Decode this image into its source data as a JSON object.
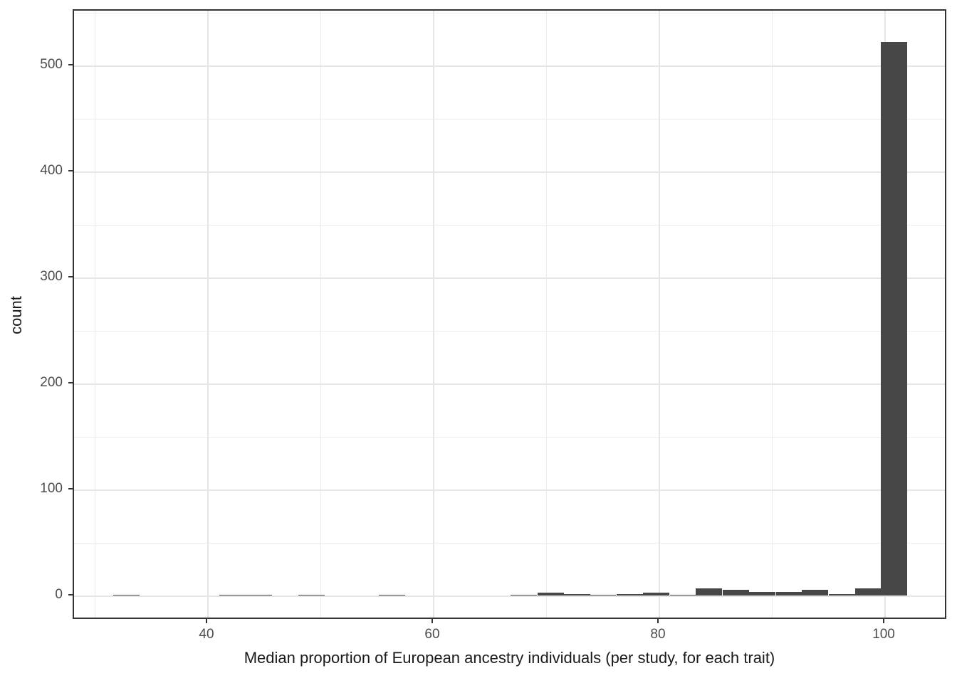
{
  "chart_data": {
    "type": "histogram",
    "title": "",
    "xlabel": "Median proportion of European ancestry individuals (per study, for each trait)",
    "ylabel": "count",
    "x_ticks": [
      40,
      60,
      80,
      100
    ],
    "x_minor_gridlines": [
      30,
      50,
      70,
      90
    ],
    "y_ticks": [
      0,
      100,
      200,
      300,
      400,
      500
    ],
    "y_minor_gridlines": [
      50,
      150,
      250,
      350,
      450,
      550
    ],
    "xlim": [
      28.1,
      105.6
    ],
    "ylim": [
      0,
      552
    ],
    "bin_width": 2.35,
    "grid": true,
    "legend_position": "none",
    "bins": [
      {
        "x": 32.8,
        "count": 1
      },
      {
        "x": 42.2,
        "count": 1
      },
      {
        "x": 44.5,
        "count": 1
      },
      {
        "x": 49.2,
        "count": 1
      },
      {
        "x": 56.3,
        "count": 1
      },
      {
        "x": 68.0,
        "count": 1
      },
      {
        "x": 70.4,
        "count": 3
      },
      {
        "x": 72.7,
        "count": 2
      },
      {
        "x": 75.0,
        "count": 1
      },
      {
        "x": 77.4,
        "count": 2
      },
      {
        "x": 79.7,
        "count": 3
      },
      {
        "x": 82.1,
        "count": 1
      },
      {
        "x": 84.4,
        "count": 7
      },
      {
        "x": 86.8,
        "count": 6
      },
      {
        "x": 89.1,
        "count": 4
      },
      {
        "x": 91.5,
        "count": 4
      },
      {
        "x": 93.8,
        "count": 6
      },
      {
        "x": 96.2,
        "count": 2
      },
      {
        "x": 98.5,
        "count": 7
      },
      {
        "x": 100.8,
        "count": 523
      }
    ],
    "colors": {
      "bar": "#474747",
      "grid_major": "#e6e6e6",
      "grid_minor": "#ededed",
      "panel_border": "#333333",
      "tick_label": "#4d4d4d",
      "axis_title": "#1a1a1a",
      "background": "#ffffff"
    }
  }
}
